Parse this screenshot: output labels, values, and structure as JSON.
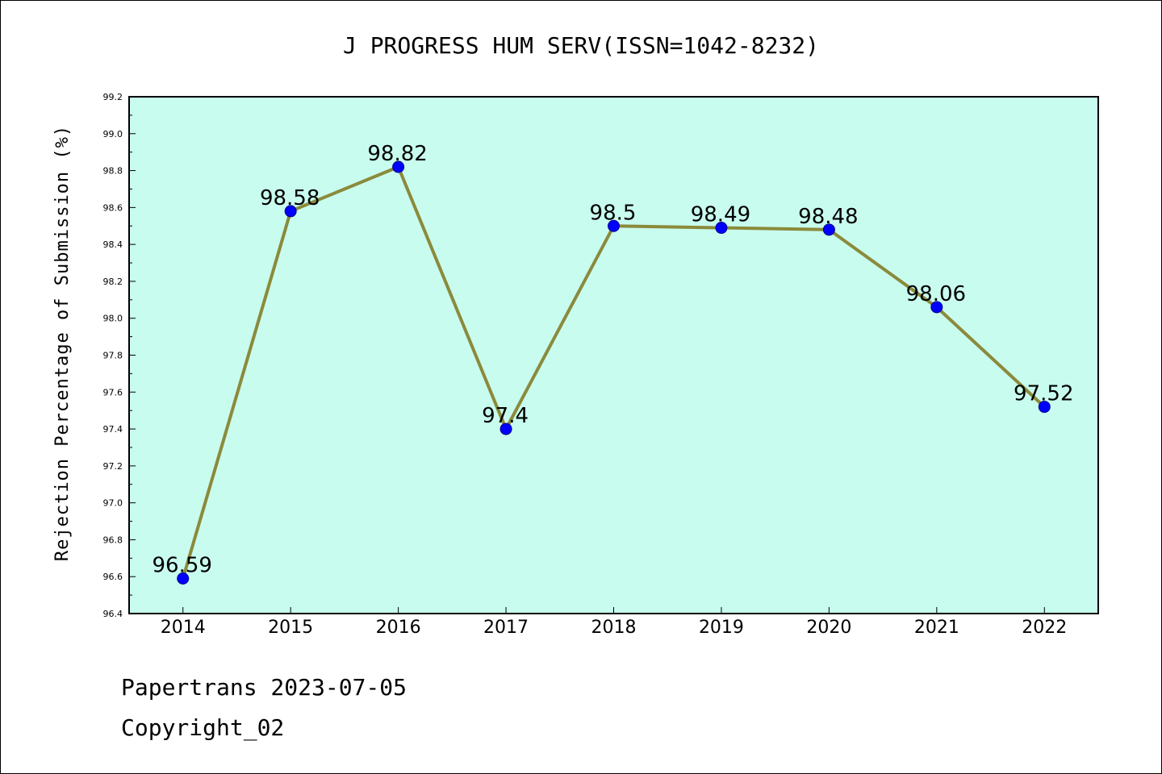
{
  "chart_data": {
    "type": "line",
    "title": "J PROGRESS HUM SERV(ISSN=1042-8232)",
    "xlabel": "",
    "ylabel": "Rejection Percentage of Submission (%)",
    "categories": [
      "2014",
      "2015",
      "2016",
      "2017",
      "2018",
      "2019",
      "2020",
      "2021",
      "2022"
    ],
    "series": [
      {
        "values": [
          96.59,
          98.58,
          98.82,
          97.4,
          98.5,
          98.49,
          98.48,
          98.06,
          97.52
        ],
        "labels": [
          "96.59",
          "98.58",
          "98.82",
          "97.4",
          "98.5",
          "98.49",
          "98.48",
          "98.06",
          "97.52"
        ],
        "line_color": "#8b8a3c",
        "marker_color": "#0000ff"
      }
    ],
    "ylim": [
      96.4,
      99.2
    ],
    "yticks": [
      "96.4",
      "96.6",
      "96.8",
      "97.0",
      "97.2",
      "97.4",
      "97.6",
      "97.8",
      "98.0",
      "98.2",
      "98.4",
      "98.6",
      "98.8",
      "99.0",
      "99.2"
    ],
    "plot_background": "#c8fcee",
    "grid": false,
    "legend": "none"
  },
  "footer": {
    "line1": "Papertrans 2023-07-05",
    "line2": "Copyright_02"
  }
}
